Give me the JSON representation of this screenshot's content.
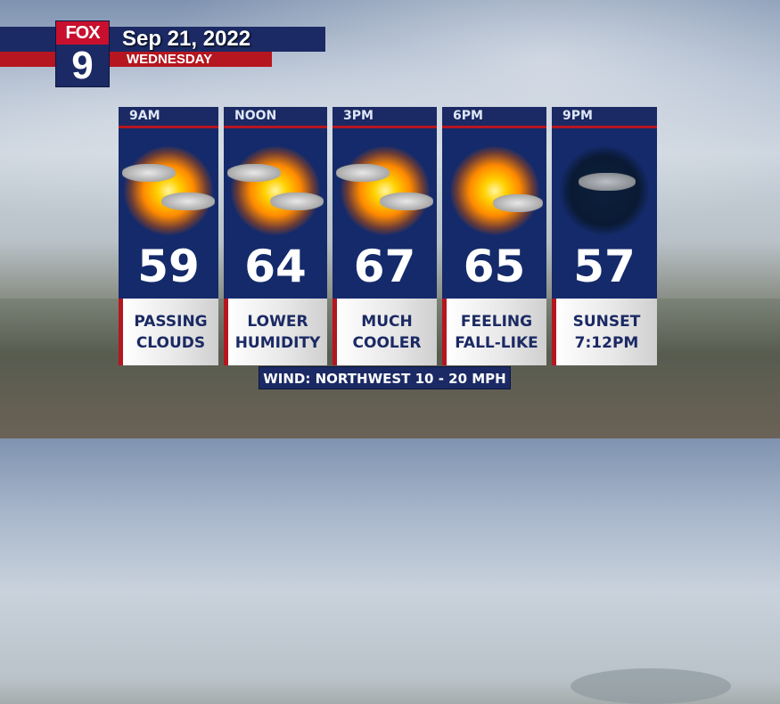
{
  "header": {
    "logo_top": "FOX",
    "logo_bottom": "9",
    "date": "Sep 21, 2022",
    "day": "WEDNESDAY"
  },
  "forecast": [
    {
      "time": "9AM",
      "temp": "59",
      "icon": "partly-sunny-icon",
      "line1": "PASSING",
      "line2": "CLOUDS"
    },
    {
      "time": "NOON",
      "temp": "64",
      "icon": "partly-sunny-icon",
      "line1": "LOWER",
      "line2": "HUMIDITY"
    },
    {
      "time": "3PM",
      "temp": "67",
      "icon": "partly-sunny-icon",
      "line1": "MUCH",
      "line2": "COOLER"
    },
    {
      "time": "6PM",
      "temp": "65",
      "icon": "mostly-sunny-icon",
      "line1": "FEELING",
      "line2": "FALL-LIKE"
    },
    {
      "time": "9PM",
      "temp": "57",
      "icon": "partly-cloudy-night-icon",
      "line1": "SUNSET",
      "line2": "7:12PM"
    }
  ],
  "wind": "WIND: NORTHWEST 10 - 20 MPH",
  "colors": {
    "navy": "#1b2a64",
    "red": "#b5161f"
  }
}
